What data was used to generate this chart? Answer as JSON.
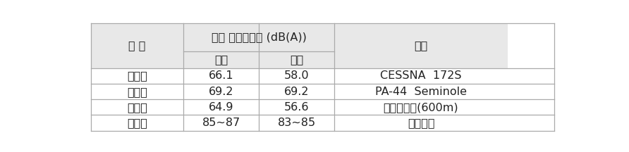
{
  "header_col0": "구 분",
  "header_noise": "평균 통과소음도 (dB(A))",
  "header_takeoff": "이륙",
  "header_landing": "착륙",
  "header_model": "기종",
  "rows": [
    [
      "단발기",
      "66.1",
      "58.0",
      "CESSNA  172S"
    ],
    [
      "쌍발기",
      "69.2",
      "69.2",
      "PA-44  Seminole"
    ],
    [
      "초경량",
      "64.9",
      "56.6",
      "빙고사바나(600m)"
    ],
    [
      "민항기",
      "85~87",
      "83~85",
      "제트엔진"
    ]
  ],
  "background_header": "#e8e8e8",
  "background_white": "#ffffff",
  "line_color": "#aaaaaa",
  "font_size": 11.5,
  "header_font_size": 11.5
}
